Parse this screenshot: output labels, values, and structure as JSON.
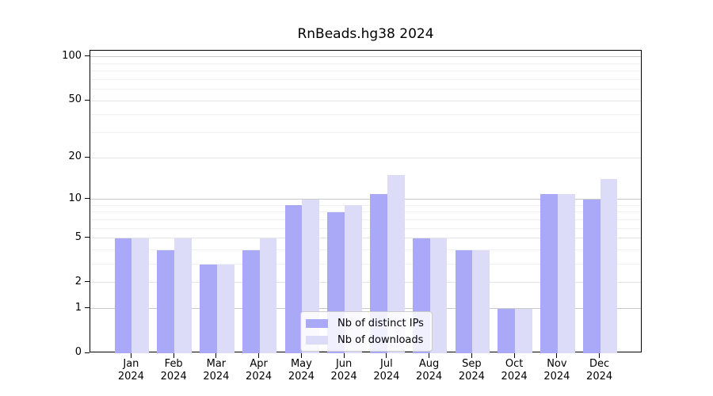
{
  "chart_data": {
    "type": "bar",
    "title": "RnBeads.hg38 2024",
    "categories": [
      "Jan",
      "Feb",
      "Mar",
      "Apr",
      "May",
      "Jun",
      "Jul",
      "Aug",
      "Sep",
      "Oct",
      "Nov",
      "Dec"
    ],
    "year": "2024",
    "series": [
      {
        "name": "Nb of distinct IPs",
        "color": "#a9a9f8",
        "values": [
          5,
          4,
          3,
          4,
          9,
          8,
          11,
          5,
          4,
          1,
          11,
          10
        ]
      },
      {
        "name": "Nb of downloads",
        "color": "#dcdcf9",
        "values": [
          5,
          5,
          3,
          5,
          10,
          9,
          15,
          5,
          4,
          1,
          11,
          14
        ]
      }
    ],
    "yticks": [
      0,
      1,
      2,
      5,
      10,
      20,
      50,
      100
    ],
    "ylim": [
      0,
      110
    ],
    "yscale": "log1p",
    "grid": "horizontal",
    "gridline_values_major": [
      1,
      10,
      100
    ],
    "gridline_values_mid": [
      2,
      5,
      20,
      50
    ],
    "gridline_values_minor": [
      3,
      4,
      6,
      7,
      8,
      9,
      30,
      40,
      60,
      70,
      80,
      90
    ],
    "legend_position": "bottom-center"
  }
}
